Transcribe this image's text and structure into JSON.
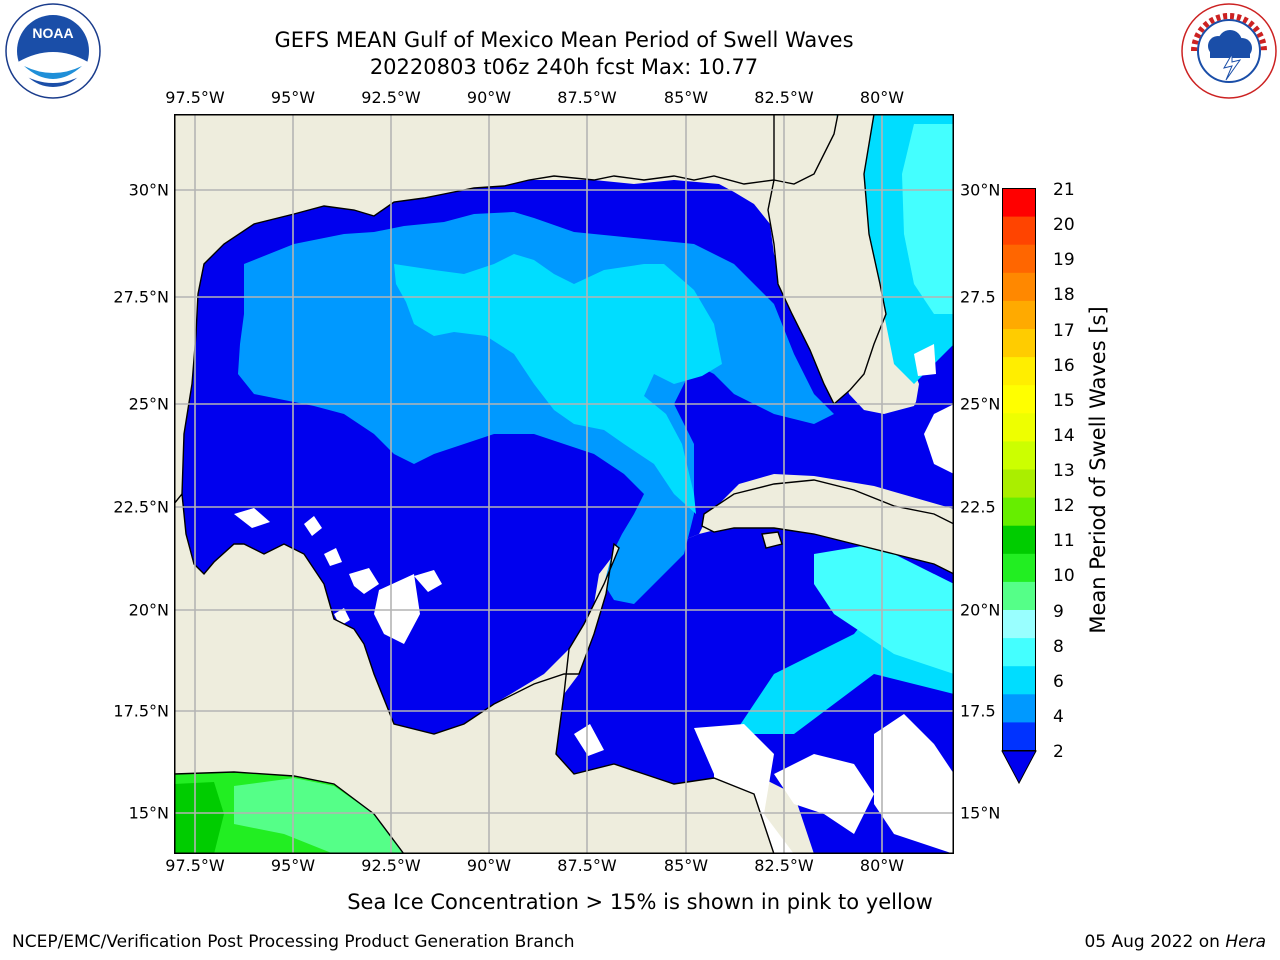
{
  "title": {
    "line1": "GEFS MEAN Gulf of Mexico Mean Period of Swell Waves",
    "line2": "20220803 t06z 240h fcst   Max: 10.77"
  },
  "map": {
    "lon_ticks": [
      "97.5°W",
      "95°W",
      "92.5°W",
      "90°W",
      "87.5°W",
      "85°W",
      "82.5°W",
      "80°W"
    ],
    "lat_ticks_left": [
      "30°N",
      "27.5°N",
      "25°N",
      "22.5°N",
      "20°N",
      "17.5°N",
      "15°N"
    ],
    "lat_ticks_right": [
      "30°N",
      "27.5",
      "25°N",
      "22.5",
      "20°N",
      "17.5",
      "15°N"
    ],
    "extent": {
      "lon_min": -98.0,
      "lon_max": -78.2,
      "lat_min": 14.1,
      "lat_max": 31.7
    },
    "land_color": "#eeeddd",
    "grid_color": "#b4b4b4"
  },
  "colorbar": {
    "title": "Mean Period of Swell Waves [s]",
    "labels": [
      "21",
      "20",
      "19",
      "18",
      "17",
      "16",
      "15",
      "14",
      "13",
      "12",
      "11",
      "10",
      "9",
      "8",
      "6",
      "4",
      "2"
    ],
    "colors_low_to_high": [
      "#0033ff",
      "#0099ff",
      "#00ddff",
      "#44ffff",
      "#99ffff",
      "#55ff88",
      "#22ee22",
      "#00cc00",
      "#66ee00",
      "#aaee00",
      "#ccff00",
      "#eeff00",
      "#ffff00",
      "#ffee00",
      "#ffcc00",
      "#ffaa00",
      "#ff8800",
      "#ff6600",
      "#ff4400",
      "#ff0000"
    ]
  },
  "footer": {
    "note": "Sea Ice Concentration > 15% is shown in pink to yellow",
    "credit_left": "NCEP/EMC/Verification Post Processing Product Generation Branch",
    "credit_right_date": "05 Aug 2022 on ",
    "credit_right_machine": "Hera"
  },
  "logos": {
    "left": {
      "icon": "noaa-logo",
      "text": "NOAA"
    },
    "right": {
      "icon": "nws-logo",
      "text": "NATIONAL WEATHER SERVICE"
    }
  }
}
